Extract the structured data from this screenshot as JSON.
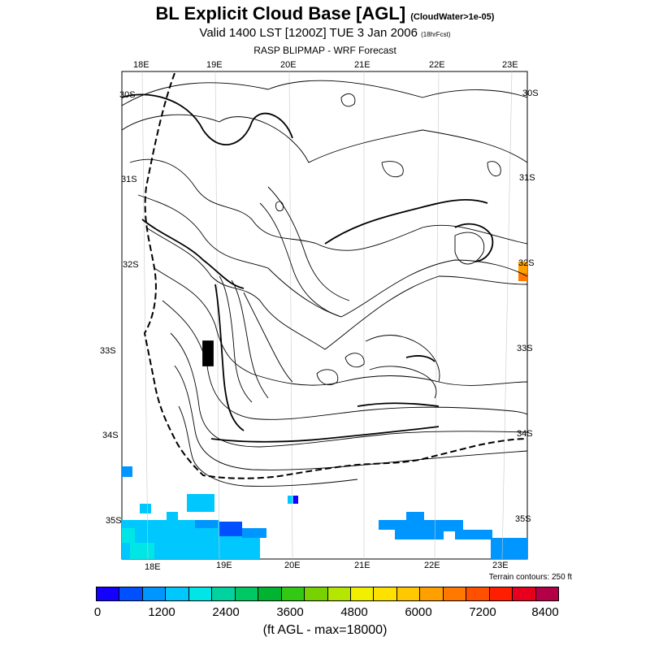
{
  "header": {
    "title": "BL Explicit Cloud Base [AGL]",
    "title_note": "(CloudWater>1e-05)",
    "valid": "Valid 1400 LST [1200Z] TUE 3 Jan 2006",
    "valid_note": "(18hrFcst)",
    "forecast": "RASP BLIPMAP - WRF Forecast"
  },
  "map": {
    "lon_labels_top": [
      "18E",
      "19E",
      "20E",
      "21E",
      "22E",
      "23E"
    ],
    "lon_labels_bottom": [
      "18E",
      "19E",
      "20E",
      "21E",
      "22E",
      "23E"
    ],
    "lat_labels_left": [
      "30S",
      "31S",
      "32S",
      "33S",
      "34S",
      "35S"
    ],
    "lat_labels_right": [
      "30S",
      "31S",
      "32S",
      "33S",
      "34S",
      "35S"
    ],
    "terrain_note": "Terrain contours: 250 ft"
  },
  "colorbar": {
    "colors": [
      "#1400ff",
      "#0050ff",
      "#0096ff",
      "#00c8ff",
      "#00e6e6",
      "#00d2a0",
      "#00c864",
      "#00b432",
      "#32c814",
      "#78d200",
      "#b4e600",
      "#f0f000",
      "#ffe100",
      "#ffc800",
      "#ffa000",
      "#ff7800",
      "#ff5000",
      "#ff1e00",
      "#e6001e",
      "#b40046"
    ],
    "tick_labels": [
      "0",
      "1200",
      "2400",
      "3600",
      "4800",
      "6000",
      "7200",
      "8400"
    ],
    "units": "(ft AGL - max=18000)"
  }
}
